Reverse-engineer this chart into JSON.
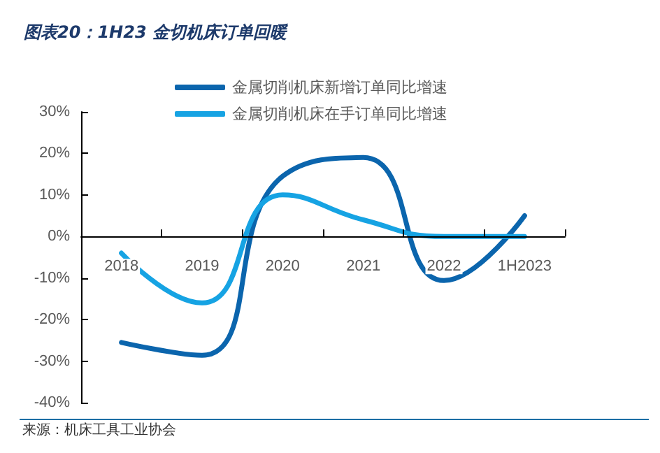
{
  "chart_data": {
    "type": "line",
    "title": "图表20：1H23 金切机床订单回暖",
    "categories": [
      "2018",
      "2019",
      "2020",
      "2021",
      "2022",
      "1H2023"
    ],
    "series": [
      {
        "name": "金属切削机床新增订单同比增速",
        "color": "#0b65ad",
        "values": [
          -25.5,
          -28.6,
          14.5,
          19,
          -10.6,
          5
        ]
      },
      {
        "name": "金属切削机床在手订单同比增速",
        "color": "#16a3e3",
        "values": [
          -4,
          -16,
          10,
          4,
          0,
          0
        ]
      }
    ],
    "ylim": [
      -40,
      30
    ],
    "yticks": [
      {
        "value": -40,
        "label": "-40%"
      },
      {
        "value": -30,
        "label": "-30%"
      },
      {
        "value": -20,
        "label": "-20%"
      },
      {
        "value": -10,
        "label": "-10%"
      },
      {
        "value": 0,
        "label": "0%"
      },
      {
        "value": 10,
        "label": "10%"
      },
      {
        "value": 20,
        "label": "20%"
      },
      {
        "value": 30,
        "label": "30%"
      }
    ],
    "grid": false,
    "legend": "top",
    "marker": "none",
    "line_style": "solid",
    "annotations": [
      "来源：机床工具工业协会"
    ]
  }
}
